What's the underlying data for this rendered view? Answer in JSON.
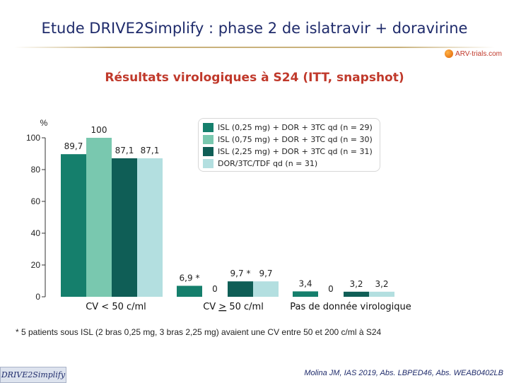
{
  "header": {
    "title": "Etude DRIVE2Simplify : phase 2 de islatravir + doravirine",
    "logo_text": "ARV-trials.com"
  },
  "subtitle": "Résultats virologiques à S24 (ITT, snapshot)",
  "chart_data": {
    "type": "bar",
    "ylabel": "%",
    "ylim": [
      0,
      100
    ],
    "yticks": [
      "0",
      "20",
      "40",
      "60",
      "80",
      "100"
    ],
    "categories": [
      "CV < 50 c/ml",
      "CV > 50 c/ml",
      "Pas de donnée virologique"
    ],
    "series": [
      {
        "name": "ISL (0,25 mg) + DOR + 3TC qd (n = 29)",
        "color": "#157f6c",
        "values": [
          89.7,
          6.9,
          3.4
        ],
        "labels": [
          "89,7",
          "6,9 *",
          "3,4"
        ]
      },
      {
        "name": "ISL (0,75 mg) + DOR + 3TC qd (n = 30)",
        "color": "#79c8af",
        "values": [
          100,
          0,
          0
        ],
        "labels": [
          "100",
          "0",
          "0"
        ]
      },
      {
        "name": "ISL (2,25 mg) + DOR + 3TC qd (n = 31)",
        "color": "#0f5e56",
        "values": [
          87.1,
          9.7,
          3.2
        ],
        "labels": [
          "87,1",
          "9,7 *",
          "3,2"
        ]
      },
      {
        "name": "DOR/3TC/TDF qd (n = 31)",
        "color": "#b3dfe0",
        "values": [
          87.1,
          9.7,
          3.2
        ],
        "labels": [
          "87,1",
          "9,7",
          "3,2"
        ]
      }
    ],
    "grid": false,
    "legend_position": "top-right"
  },
  "footnote": "* 5 patients sous ISL (2 bras 0,25 mg, 3 bras 2,25 mg) avaient une CV entre 50 et 200 c/ml à S24",
  "footer": {
    "study_tag": "DRIVE2Simplify",
    "reference": "Molina JM, IAS 2019, Abs. LBPED46, Abs. WEAB0402LB"
  }
}
